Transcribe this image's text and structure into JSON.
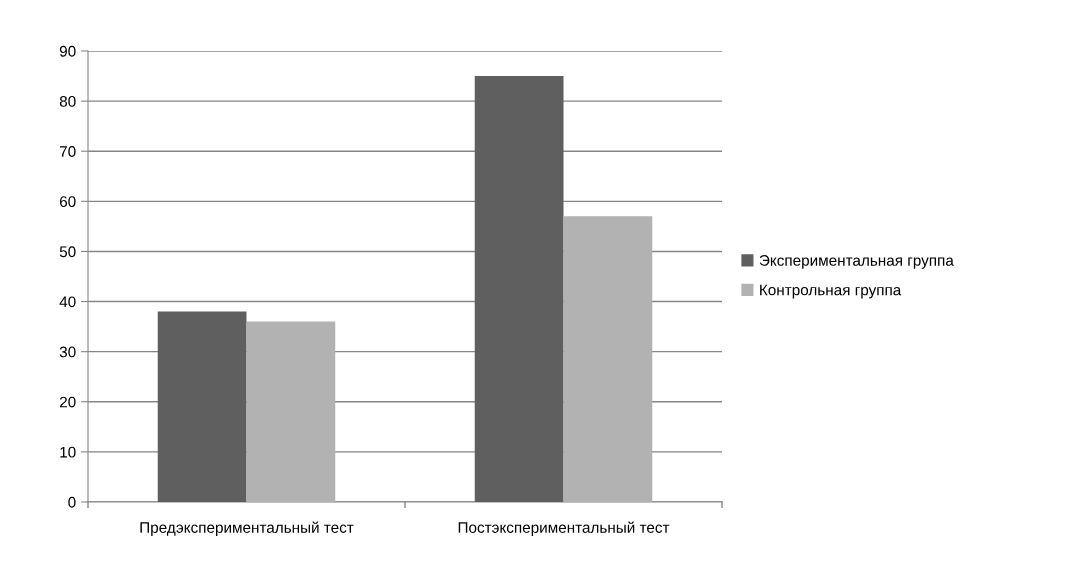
{
  "chart_data": {
    "type": "bar",
    "categories": [
      "Предэкспериментальный тест",
      "Постэкспериментальный тест"
    ],
    "series": [
      {
        "name": "Экспериментальная группа",
        "color": "#5f5f5f",
        "values": [
          38,
          85
        ]
      },
      {
        "name": "Контрольная группа",
        "color": "#b2b2b2",
        "values": [
          36,
          57
        ]
      }
    ],
    "ylim": [
      0,
      90
    ],
    "yticks": [
      0,
      10,
      20,
      30,
      40,
      50,
      60,
      70,
      80,
      90
    ],
    "grid": "y",
    "legend": "right"
  }
}
